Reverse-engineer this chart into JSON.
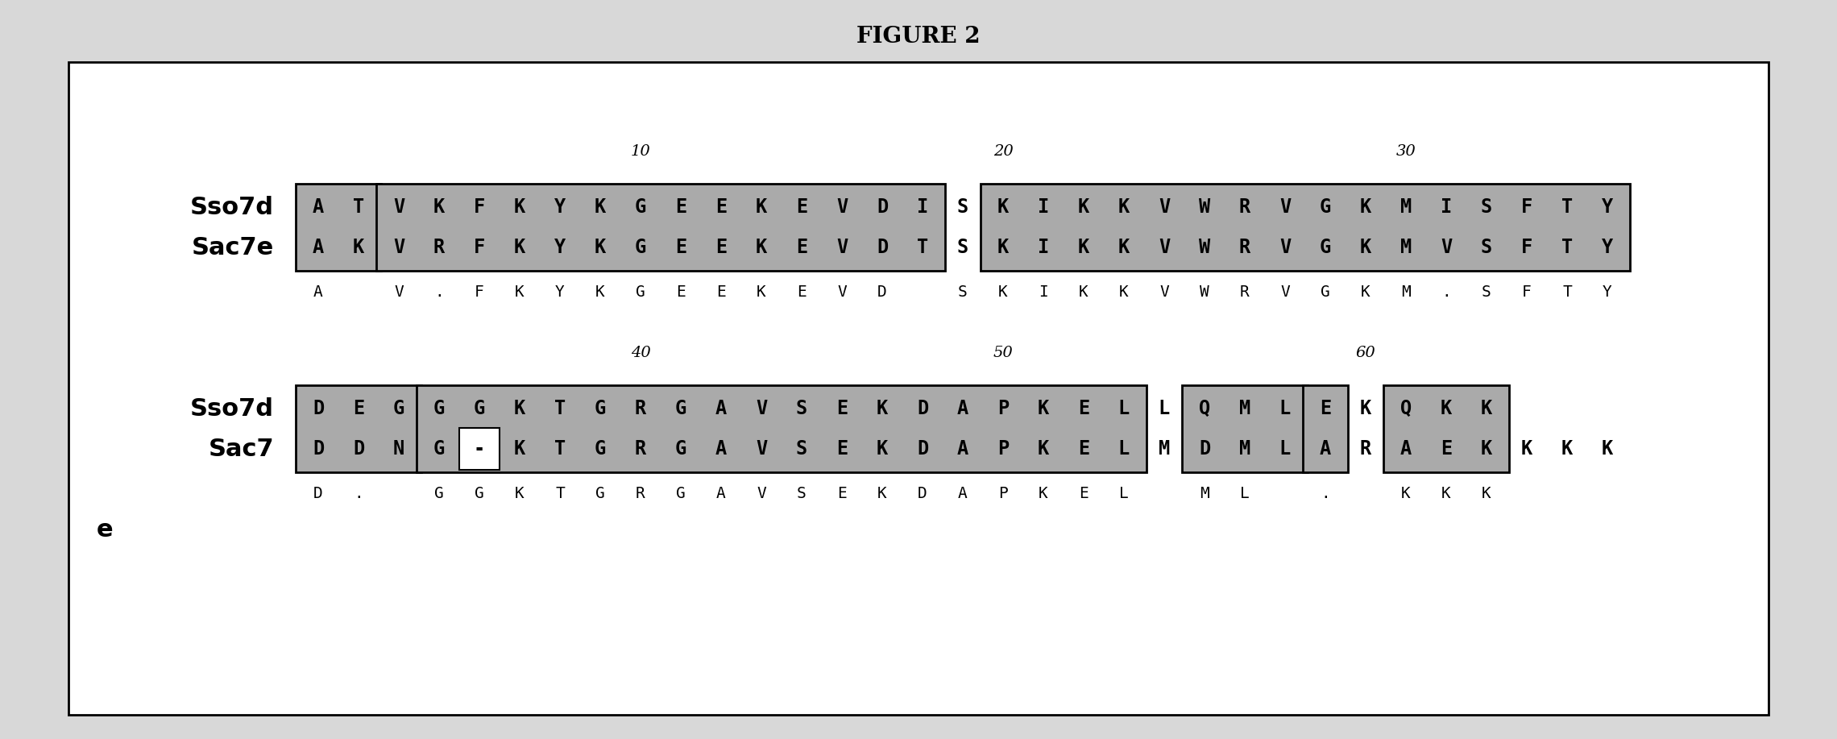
{
  "title": "FIGURE 2",
  "title_fontsize": 20,
  "title_fontweight": "bold",
  "bg_color": "#d8d8d8",
  "inner_bg": "#ffffff",
  "box_fill": "#aaaaaa",
  "box_edge": "#000000",
  "text_color": "#000000",
  "panel1_label1": "Sso7d",
  "panel1_label2": "Sac7e",
  "panel2_label1": "Sso7d",
  "panel2_label2": "Sac7",
  "panel2_label2b": "e",
  "sso7d_seq1": "ATVKFKYKGEEKEVDISKIKKVWRVGKMISFTY",
  "sac7e_seq1": "AKVRFKYKGEEKEVDTSKIKKVWRVGKMVSFTY",
  "cons_seq1_chars": [
    [
      0,
      "A"
    ],
    [
      2,
      "V"
    ],
    [
      3,
      "."
    ],
    [
      4,
      "F"
    ],
    [
      5,
      "K"
    ],
    [
      6,
      "Y"
    ],
    [
      7,
      "K"
    ],
    [
      8,
      "G"
    ],
    [
      9,
      "E"
    ],
    [
      10,
      "E"
    ],
    [
      11,
      "K"
    ],
    [
      12,
      "E"
    ],
    [
      13,
      "V"
    ],
    [
      14,
      "D"
    ],
    [
      16,
      "S"
    ],
    [
      17,
      "K"
    ],
    [
      18,
      "I"
    ],
    [
      19,
      "K"
    ],
    [
      20,
      "K"
    ],
    [
      21,
      "V"
    ],
    [
      22,
      "W"
    ],
    [
      23,
      "R"
    ],
    [
      24,
      "V"
    ],
    [
      25,
      "G"
    ],
    [
      26,
      "K"
    ],
    [
      27,
      "M"
    ],
    [
      28,
      "."
    ],
    [
      29,
      "S"
    ],
    [
      30,
      "F"
    ],
    [
      31,
      "T"
    ],
    [
      32,
      "Y"
    ]
  ],
  "sso7d_seq2": "DEGGGKTGRGAVSEKDAPKELLQMLEKQKK",
  "sac7_seq2": "DDNG-KTGRGAVSEKDAPKELMDMLARAEKKKK",
  "cons_seq2_chars": [
    [
      0,
      "D"
    ],
    [
      1,
      "."
    ],
    [
      3,
      "G"
    ],
    [
      4,
      "G"
    ],
    [
      5,
      "K"
    ],
    [
      6,
      "T"
    ],
    [
      7,
      "G"
    ],
    [
      8,
      "R"
    ],
    [
      9,
      "G"
    ],
    [
      10,
      "A"
    ],
    [
      11,
      "V"
    ],
    [
      12,
      "S"
    ],
    [
      13,
      "E"
    ],
    [
      14,
      "K"
    ],
    [
      15,
      "D"
    ],
    [
      16,
      "A"
    ],
    [
      17,
      "P"
    ],
    [
      18,
      "K"
    ],
    [
      19,
      "E"
    ],
    [
      20,
      "L"
    ],
    [
      22,
      "M"
    ],
    [
      23,
      "L"
    ],
    [
      25,
      "."
    ],
    [
      27,
      "K"
    ],
    [
      28,
      "K"
    ],
    [
      29,
      "K"
    ]
  ],
  "num1": [
    [
      8,
      "10"
    ],
    [
      17,
      "20"
    ],
    [
      27,
      "30"
    ]
  ],
  "num2": [
    [
      8,
      "40"
    ],
    [
      17,
      "50"
    ],
    [
      26,
      "60"
    ]
  ],
  "p1_boxes": [
    {
      "start": 0,
      "end": 2,
      "type": "small"
    },
    {
      "start": 2,
      "end": 16,
      "type": "main"
    },
    {
      "start": 17,
      "end": 33,
      "type": "main"
    }
  ],
  "p2_boxes": [
    {
      "start": 0,
      "end": 3,
      "type": "main"
    },
    {
      "start": 3,
      "end": 21,
      "type": "main"
    },
    {
      "start": 22,
      "end": 25,
      "type": "main"
    },
    {
      "start": 25,
      "end": 26,
      "type": "main"
    },
    {
      "start": 27,
      "end": 30,
      "type": "main"
    }
  ],
  "p2_gap_notch": {
    "start": 4,
    "end": 5
  }
}
